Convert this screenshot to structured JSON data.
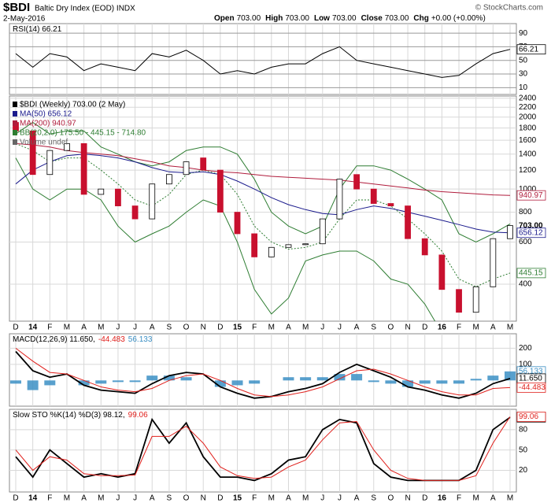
{
  "header": {
    "symbol": "$BDI",
    "name": "Baltic Dry Index (EOD) INDX",
    "date": "2-May-2016",
    "quote": [
      {
        "label": "Open",
        "value": "703.00"
      },
      {
        "label": "High",
        "value": "703.00"
      },
      {
        "label": "Low",
        "value": "703.00"
      },
      {
        "label": "Close",
        "value": "703.00"
      },
      {
        "label": "Chg",
        "value": "+0.00 (+0.00%)"
      }
    ],
    "copyright": "© StockCharts.com"
  },
  "chart_data": [
    {
      "type": "line",
      "ylim": [
        0,
        104
      ],
      "yticks": [
        10,
        30,
        50,
        70,
        90
      ],
      "series": [
        {
          "name": "RSI(14) 66.21",
          "color": "#000000",
          "values": [
            60,
            40,
            60,
            55,
            35,
            45,
            40,
            35,
            60,
            55,
            65,
            50,
            30,
            35,
            30,
            40,
            45,
            45,
            60,
            70,
            50,
            45,
            40,
            35,
            30,
            25,
            28,
            45,
            60,
            66.21
          ]
        }
      ]
    },
    {
      "type": "candlestick",
      "log": true,
      "ylim": [
        280,
        2450
      ],
      "yticks": [
        400,
        600,
        800,
        1000,
        1200,
        1400,
        1600,
        1800,
        2000,
        2200,
        2400
      ],
      "categories": [
        "D",
        "14",
        "F",
        "M",
        "A",
        "M",
        "J",
        "J",
        "A",
        "S",
        "O",
        "N",
        "D",
        "15",
        "F",
        "M",
        "A",
        "M",
        "J",
        "J",
        "A",
        "S",
        "O",
        "N",
        "D",
        "16",
        "F",
        "M",
        "A",
        "M"
      ],
      "candles": {
        "name": "$BDI (Weekly) 703.00 (2 May)",
        "up_color": "#ffffff",
        "down_color": "#c8102e",
        "open": [
          1900,
          1750,
          1150,
          1450,
          1550,
          950,
          1000,
          850,
          750,
          1050,
          1150,
          1350,
          1200,
          800,
          650,
          520,
          570,
          585,
          590,
          750,
          1150,
          1000,
          870,
          850,
          620,
          530,
          380,
          305,
          390,
          620
        ],
        "close": [
          1750,
          1150,
          1450,
          1550,
          950,
          1000,
          850,
          750,
          1050,
          1150,
          1300,
          1200,
          800,
          650,
          520,
          570,
          585,
          590,
          750,
          1100,
          1000,
          870,
          850,
          620,
          530,
          380,
          305,
          390,
          620,
          703
        ],
        "value_labels": [
          null,
          null,
          null,
          null,
          null,
          null,
          null,
          null,
          null,
          null,
          null,
          null,
          null,
          null,
          null,
          null,
          null,
          null,
          null,
          null,
          null,
          null,
          null,
          null,
          null,
          null,
          null,
          null,
          null,
          "703.00"
        ]
      },
      "series": [
        {
          "name": "MA(50) 656.12",
          "color": "#1a1a8c",
          "values": [
            1050,
            1200,
            1300,
            1380,
            1400,
            1380,
            1350,
            1300,
            1230,
            1180,
            1170,
            1180,
            1150,
            1080,
            1000,
            920,
            860,
            820,
            790,
            780,
            820,
            850,
            830,
            800,
            770,
            740,
            710,
            680,
            660,
            656.12
          ]
        },
        {
          "name": "MA(200) 940.97",
          "color": "#b01c3c",
          "values": [
            1550,
            1530,
            1500,
            1450,
            1420,
            1400,
            1380,
            1340,
            1300,
            1250,
            1230,
            1200,
            1180,
            1170,
            1150,
            1130,
            1120,
            1110,
            1100,
            1090,
            1070,
            1050,
            1030,
            1010,
            990,
            975,
            965,
            955,
            945,
            940.97
          ]
        }
      ],
      "bands": {
        "name": "BB(20,2.0) 175.50 - 445.15 - 714.80",
        "color": "#2e7d32",
        "upper": [
          1700,
          1900,
          1700,
          1750,
          1750,
          1500,
          1400,
          1300,
          1250,
          1300,
          1450,
          1500,
          1500,
          1400,
          1100,
          800,
          700,
          650,
          700,
          1000,
          1250,
          1250,
          1200,
          1100,
          1000,
          900,
          650,
          600,
          650,
          714.8
        ],
        "middle": [
          1550,
          1450,
          1300,
          1350,
          1350,
          1200,
          1050,
          900,
          850,
          950,
          1150,
          1200,
          1150,
          950,
          700,
          600,
          560,
          570,
          600,
          750,
          900,
          900,
          850,
          750,
          650,
          550,
          420,
          390,
          420,
          445.15
        ],
        "lower": [
          1350,
          1000,
          900,
          1000,
          1000,
          900,
          700,
          600,
          650,
          700,
          800,
          900,
          850,
          600,
          380,
          300,
          350,
          500,
          530,
          550,
          550,
          500,
          420,
          400,
          330,
          250,
          200,
          180,
          170,
          175.5
        ]
      },
      "volume": "Volume undef"
    },
    {
      "type": "line",
      "ylim": [
        -160,
        290
      ],
      "yticks": [
        100,
        200
      ],
      "series": [
        {
          "name": "56.133",
          "type": "bar",
          "color": "#3b8fc4",
          "values": [
            -20,
            -60,
            -30,
            0,
            -30,
            -20,
            -10,
            -10,
            30,
            30,
            20,
            0,
            -40,
            -30,
            -20,
            0,
            20,
            20,
            20,
            40,
            40,
            -10,
            -20,
            -40,
            -20,
            -20,
            -20,
            10,
            30,
            56.133
          ]
        },
        {
          "name": "MACD(12,26,9) 11.650,",
          "color": "#000000",
          "values": [
            180,
            60,
            20,
            40,
            -30,
            -60,
            -70,
            -80,
            -20,
            30,
            50,
            40,
            -40,
            -80,
            -110,
            -100,
            -70,
            -50,
            -20,
            50,
            100,
            60,
            20,
            -40,
            -60,
            -90,
            -110,
            -80,
            -20,
            11.65
          ],
          "value_labels": [
            null,
            null,
            null,
            null,
            null,
            null,
            null,
            null,
            null,
            null,
            null,
            null,
            null,
            null,
            null,
            null,
            null,
            null,
            null,
            null,
            null,
            null,
            null,
            null,
            null,
            null,
            null,
            null,
            null,
            "11.650"
          ]
        },
        {
          "name": "-44.483",
          "color": "#e0201c",
          "values": [
            200,
            120,
            50,
            40,
            0,
            -40,
            -60,
            -70,
            -50,
            0,
            30,
            40,
            0,
            -50,
            -90,
            -100,
            -90,
            -70,
            -40,
            10,
            60,
            70,
            40,
            0,
            -40,
            -70,
            -90,
            -90,
            -50,
            -44.483
          ]
        }
      ]
    },
    {
      "type": "line",
      "ylim": [
        -12,
        110
      ],
      "yticks": [
        20,
        50,
        80
      ],
      "categories": [
        "D",
        "14",
        "F",
        "M",
        "A",
        "M",
        "J",
        "J",
        "A",
        "S",
        "O",
        "N",
        "D",
        "15",
        "F",
        "M",
        "A",
        "M",
        "J",
        "J",
        "A",
        "S",
        "O",
        "N",
        "D",
        "16",
        "F",
        "M",
        "A",
        "M"
      ],
      "series": [
        {
          "name": "Slow STO %K(14) %D(3) 98.12,",
          "color": "#000000",
          "values": [
            40,
            10,
            50,
            30,
            10,
            15,
            10,
            15,
            95,
            60,
            90,
            40,
            10,
            10,
            5,
            15,
            35,
            40,
            80,
            95,
            90,
            30,
            10,
            5,
            5,
            5,
            5,
            20,
            80,
            98.12
          ]
        },
        {
          "name": "99.06",
          "color": "#e0201c",
          "values": [
            50,
            20,
            40,
            35,
            15,
            12,
            12,
            13,
            70,
            70,
            85,
            60,
            25,
            12,
            8,
            10,
            25,
            35,
            65,
            90,
            92,
            50,
            20,
            8,
            5,
            5,
            5,
            12,
            60,
            99.06
          ]
        }
      ]
    }
  ]
}
